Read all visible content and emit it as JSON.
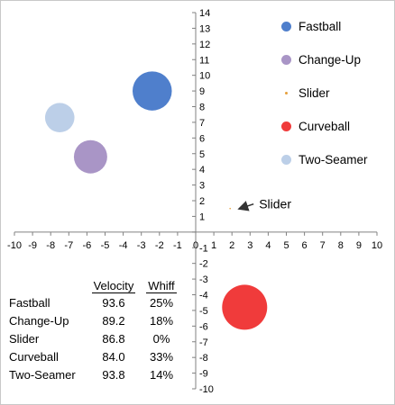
{
  "chart_data": {
    "type": "bubble",
    "x_range": [
      -10,
      10
    ],
    "y_range": [
      -10,
      14
    ],
    "x_ticks": [
      "-10",
      "-9",
      "-8",
      "-7",
      "-6",
      "-5",
      "-4",
      "-3",
      "-2",
      "-1",
      "0",
      "1",
      "2",
      "3",
      "4",
      "5",
      "6",
      "7",
      "8",
      "9",
      "10"
    ],
    "y_ticks": [
      "-10",
      "-9",
      "-8",
      "-7",
      "-6",
      "-5",
      "-4",
      "-3",
      "-2",
      "-1",
      "0",
      "1",
      "2",
      "3",
      "4",
      "5",
      "6",
      "7",
      "8",
      "9",
      "10",
      "11",
      "12",
      "13",
      "14"
    ],
    "series": [
      {
        "name": "Fastball",
        "x": -2.4,
        "y": 9.0,
        "size": 25,
        "color": "#4f7fcc"
      },
      {
        "name": "Change-Up",
        "x": -5.8,
        "y": 4.8,
        "size": 18,
        "color": "#a995c6"
      },
      {
        "name": "Slider",
        "x": 1.9,
        "y": 1.5,
        "size": 0,
        "color": "#e5a03c"
      },
      {
        "name": "Curveball",
        "x": 2.7,
        "y": -4.8,
        "size": 33,
        "color": "#f03b3b"
      },
      {
        "name": "Two-Seamer",
        "x": -7.5,
        "y": 7.3,
        "size": 14,
        "color": "#bccfe8"
      }
    ],
    "legend_position": "right",
    "grid": false,
    "annotations": [
      {
        "text": "Slider",
        "target_series": "Slider"
      }
    ]
  },
  "table": {
    "headers": {
      "velocity": "Velocity",
      "whiff": "Whiff"
    },
    "rows": [
      {
        "name": "Fastball",
        "velocity": "93.6",
        "whiff": "25%"
      },
      {
        "name": "Change-Up",
        "velocity": "89.2",
        "whiff": "18%"
      },
      {
        "name": "Slider",
        "velocity": "86.8",
        "whiff": "0%"
      },
      {
        "name": "Curveball",
        "velocity": "84.0",
        "whiff": "33%"
      },
      {
        "name": "Two-Seamer",
        "velocity": "93.8",
        "whiff": "14%"
      }
    ]
  }
}
